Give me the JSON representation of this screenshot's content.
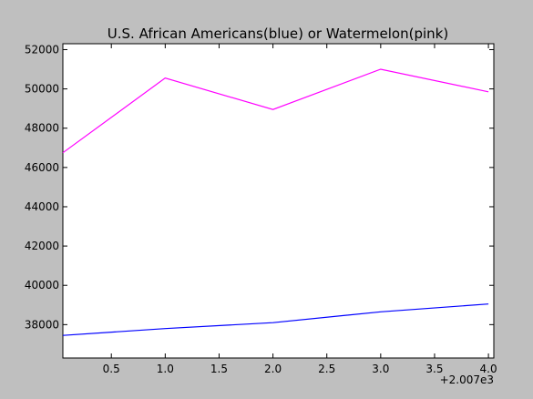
{
  "chart_data": {
    "type": "line",
    "title": "U.S. African Americans(blue) or Watermelon(pink)",
    "xlabel": "",
    "ylabel": "",
    "x_offset_label": "+2.007e3",
    "xlim": [
      0.05,
      4.05
    ],
    "ylim": [
      36300,
      52300
    ],
    "grid": false,
    "x_ticks": [
      0.5,
      1.0,
      1.5,
      2.0,
      2.5,
      3.0,
      3.5,
      4.0
    ],
    "x_tick_labels": [
      "0.5",
      "1.0",
      "1.5",
      "2.0",
      "2.5",
      "3.0",
      "3.5",
      "4.0"
    ],
    "y_ticks": [
      38000,
      40000,
      42000,
      44000,
      46000,
      48000,
      50000,
      52000
    ],
    "y_tick_labels": [
      "38000",
      "40000",
      "42000",
      "44000",
      "46000",
      "48000",
      "50000",
      "52000"
    ],
    "series": [
      {
        "color": "#ff00ff",
        "x": [
          0.05,
          1.0,
          2.0,
          3.0,
          4.0
        ],
        "y": [
          46750,
          50550,
          48950,
          51000,
          49850
        ]
      },
      {
        "color": "#0000ff",
        "x": [
          0.05,
          1.0,
          2.0,
          3.0,
          4.0
        ],
        "y": [
          37450,
          37800,
          38100,
          38650,
          39050
        ]
      }
    ]
  }
}
